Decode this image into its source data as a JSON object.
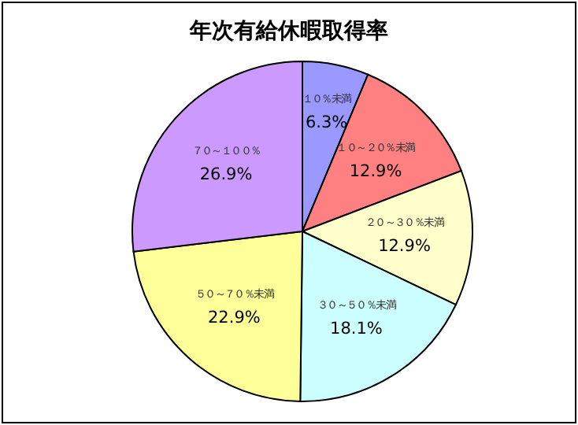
{
  "chart_data": {
    "type": "pie",
    "title": "年次有給休暇取得率",
    "categories": [
      "１０％未満",
      "１０～２０％未満",
      "２０～３０％未満",
      "３０～５０％未満",
      "５０～７０％未満",
      "７０～１００％"
    ],
    "values": [
      6.3,
      12.9,
      12.9,
      18.1,
      22.9,
      26.9
    ],
    "value_labels": [
      "6.3%",
      "12.9%",
      "12.9%",
      "18.1%",
      "22.9%",
      "26.9%"
    ],
    "colors": [
      "#9999ff",
      "#ff8080",
      "#ffffcc",
      "#ccffff",
      "#ffff99",
      "#cc99ff"
    ]
  }
}
